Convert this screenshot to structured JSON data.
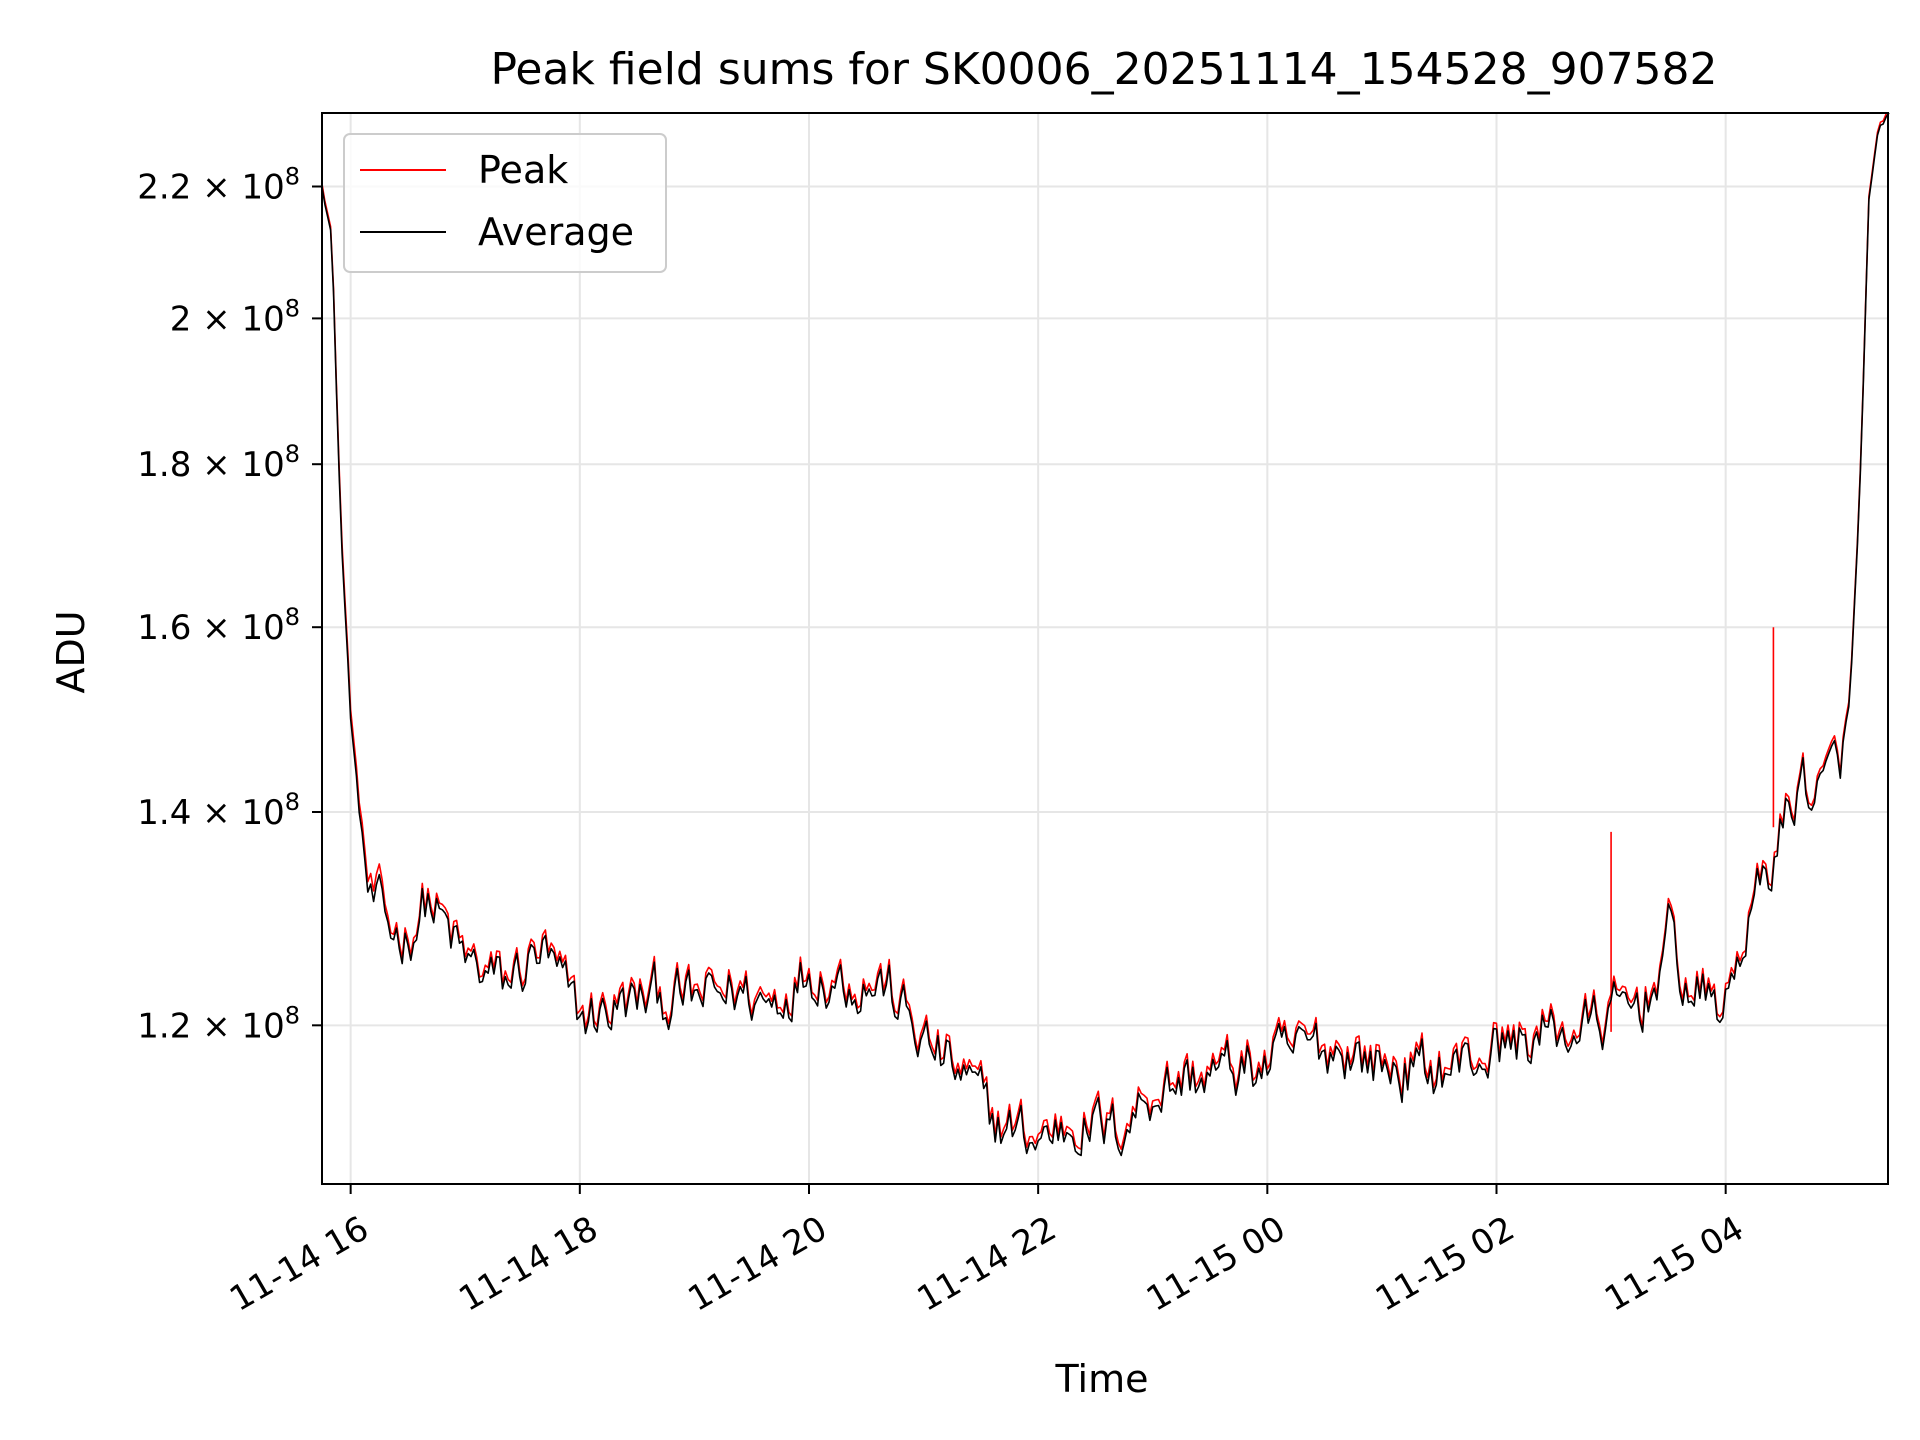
{
  "chart_data": {
    "type": "line",
    "title": "Peak field sums for SK0006_20251114_154528_907582",
    "xlabel": "Time",
    "ylabel": "ADU",
    "yscale": "log",
    "xlim": [
      "2025-11-14 15:45",
      "2025-11-15 05:25"
    ],
    "ylim": [
      107000000,
      232000000
    ],
    "grid": true,
    "legend_position": "upper left",
    "x_tick_labels": [
      "11-14 16",
      "11-14 18",
      "11-14 20",
      "11-14 22",
      "11-15 00",
      "11-15 02",
      "11-15 04"
    ],
    "x_ticks": [
      "2025-11-14 16:00",
      "2025-11-14 18:00",
      "2025-11-14 20:00",
      "2025-11-14 22:00",
      "2025-11-15 00:00",
      "2025-11-15 02:00",
      "2025-11-15 04:00"
    ],
    "y_ticks": [
      {
        "value": 120000000,
        "mantissa": "1.2",
        "exp": "8"
      },
      {
        "value": 140000000,
        "mantissa": "1.4",
        "exp": "8"
      },
      {
        "value": 160000000,
        "mantissa": "1.6",
        "exp": "8"
      },
      {
        "value": 180000000,
        "mantissa": "1.8",
        "exp": "8"
      },
      {
        "value": 200000000,
        "mantissa": "2",
        "exp": "8"
      },
      {
        "value": 220000000,
        "mantissa": "2.2",
        "exp": "8"
      }
    ],
    "x": [
      "2025-11-14 15:45",
      "2025-11-14 15:50",
      "2025-11-14 15:55",
      "2025-11-14 16:00",
      "2025-11-14 16:05",
      "2025-11-14 16:10",
      "2025-11-14 16:15",
      "2025-11-14 16:20",
      "2025-11-14 16:30",
      "2025-11-14 16:40",
      "2025-11-14 17:00",
      "2025-11-14 17:20",
      "2025-11-14 17:40",
      "2025-11-14 18:00",
      "2025-11-14 18:20",
      "2025-11-14 18:40",
      "2025-11-14 19:00",
      "2025-11-14 19:20",
      "2025-11-14 19:40",
      "2025-11-14 20:00",
      "2025-11-14 20:20",
      "2025-11-14 20:40",
      "2025-11-14 21:00",
      "2025-11-14 21:20",
      "2025-11-14 21:40",
      "2025-11-14 22:00",
      "2025-11-14 22:20",
      "2025-11-14 22:40",
      "2025-11-14 23:00",
      "2025-11-14 23:20",
      "2025-11-14 23:40",
      "2025-11-15 00:00",
      "2025-11-15 00:20",
      "2025-11-15 00:40",
      "2025-11-15 01:00",
      "2025-11-15 01:20",
      "2025-11-15 01:40",
      "2025-11-15 02:00",
      "2025-11-15 02:20",
      "2025-11-15 02:40",
      "2025-11-15 03:00",
      "2025-11-15 03:20",
      "2025-11-15 03:30",
      "2025-11-15 03:40",
      "2025-11-15 04:00",
      "2025-11-15 04:10",
      "2025-11-15 04:20",
      "2025-11-15 04:30",
      "2025-11-15 04:40",
      "2025-11-15 04:50",
      "2025-11-15 05:00",
      "2025-11-15 05:05",
      "2025-11-15 05:10",
      "2025-11-15 05:15",
      "2025-11-15 05:20",
      "2025-11-15 05:25"
    ],
    "series": [
      {
        "name": "Peak",
        "color": "#ff0000",
        "values": [
          221000000,
          213000000,
          172000000,
          151000000,
          140000000,
          132000000,
          131000000,
          129000000,
          128500000,
          132000000,
          126000000,
          124000000,
          127000000,
          121000000,
          122000000,
          123000000,
          122500000,
          123500000,
          122500000,
          125500000,
          124500000,
          124000000,
          119000000,
          116000000,
          112000000,
          111000000,
          112500000,
          111500000,
          115000000,
          116000000,
          116500000,
          117000000,
          118500000,
          118500000,
          117000000,
          116500000,
          117000000,
          118500000,
          119500000,
          120000000,
          121000000,
          123000000,
          128500000,
          123500000,
          122000000,
          129000000,
          133500000,
          139000000,
          144000000,
          142000000,
          146000000,
          152000000,
          175000000,
          218000000,
          229000000,
          232000000
        ]
      },
      {
        "name": "Average",
        "color": "#000000",
        "values": [
          220500000,
          212500000,
          171000000,
          150000000,
          139000000,
          131000000,
          130000000,
          128500000,
          128000000,
          131500000,
          125500000,
          123500000,
          126500000,
          120500000,
          121500000,
          122500000,
          122000000,
          123000000,
          122000000,
          125000000,
          124000000,
          123500000,
          118500000,
          115500000,
          111500000,
          110500000,
          112000000,
          111000000,
          114500000,
          115500000,
          116000000,
          116500000,
          118000000,
          118000000,
          116500000,
          116000000,
          116500000,
          118000000,
          119000000,
          119500000,
          120500000,
          122500000,
          128000000,
          123000000,
          121500000,
          128500000,
          133000000,
          138500000,
          143500000,
          141500000,
          145500000,
          151500000,
          174500000,
          217500000,
          228500000,
          231500000
        ]
      }
    ],
    "peak_spikes": [
      {
        "x": "2025-11-15 03:00",
        "value": 138000000
      },
      {
        "x": "2025-11-15 04:25",
        "value": 160000000
      }
    ]
  }
}
